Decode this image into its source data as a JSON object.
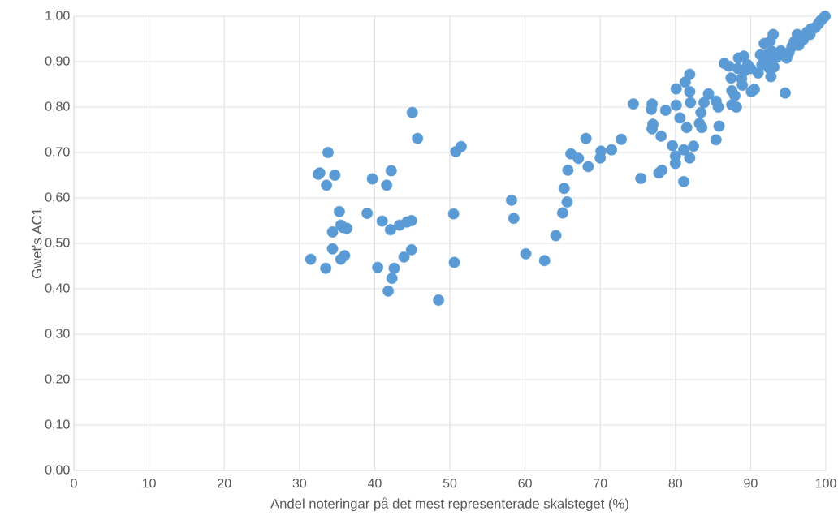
{
  "chart_data": {
    "type": "scatter",
    "xlabel": "Andel noteringar på det mest representerade skalsteget (%)",
    "ylabel": "Gwet's AC1",
    "x": [
      31.5,
      32.5,
      32.7,
      33.5,
      33.8,
      33.6,
      34.7,
      34.4,
      34.4,
      35.3,
      35.5,
      35.8,
      36.3,
      35.5,
      36.0,
      39.0,
      39.7,
      40.4,
      41.0,
      41.6,
      41.8,
      42.1,
      42.2,
      42.3,
      42.6,
      43.3,
      43.9,
      44.3,
      44.9,
      44.9,
      45.0,
      45.7,
      48.5,
      50.5,
      50.6,
      50.8,
      51.5,
      58.2,
      58.5,
      60.1,
      62.6,
      64.1,
      65.0,
      65.2,
      65.6,
      65.7,
      66.1,
      67.1,
      68.1,
      68.4,
      70.0,
      70.1,
      71.5,
      72.8,
      74.4,
      75.4,
      76.9,
      76.8,
      77.0,
      76.9,
      77.8,
      78.2,
      78.1,
      78.7,
      79.6,
      80.0,
      80.0,
      80.1,
      80.1,
      80.6,
      81.1,
      81.1,
      81.3,
      81.5,
      81.9,
      81.9,
      82.0,
      81.9,
      82.4,
      83.2,
      83.4,
      83.5,
      83.8,
      84.4,
      85.4,
      85.4,
      85.7,
      85.8,
      86.5,
      87.1,
      87.4,
      87.5,
      87.5,
      87.9,
      88.1,
      88.3,
      88.4,
      88.8,
      88.9,
      89.1,
      89.2,
      89.6,
      90.0,
      90.1,
      90.5,
      91.0,
      91.3,
      91.5,
      91.8,
      92.1,
      92.4,
      92.5,
      92.7,
      92.6,
      93.0,
      92.8,
      93.1,
      93.5,
      94.0,
      94.6,
      94.8,
      95.1,
      95.5,
      95.8,
      96.2,
      96.4,
      97.5,
      97.9,
      98.6,
      99.0,
      99.3,
      99.6,
      99.9,
      97.0,
      98.0
    ],
    "values": [
      0.465,
      0.652,
      0.655,
      0.445,
      0.7,
      0.628,
      0.65,
      0.525,
      0.488,
      0.57,
      0.54,
      0.535,
      0.533,
      0.465,
      0.473,
      0.566,
      0.642,
      0.447,
      0.549,
      0.628,
      0.395,
      0.53,
      0.66,
      0.423,
      0.445,
      0.54,
      0.47,
      0.547,
      0.55,
      0.486,
      0.788,
      0.731,
      0.375,
      0.565,
      0.458,
      0.702,
      0.713,
      0.595,
      0.555,
      0.477,
      0.462,
      0.517,
      0.567,
      0.621,
      0.591,
      0.661,
      0.697,
      0.687,
      0.731,
      0.669,
      0.688,
      0.703,
      0.706,
      0.729,
      0.807,
      0.643,
      0.807,
      0.795,
      0.762,
      0.752,
      0.655,
      0.661,
      0.736,
      0.793,
      0.715,
      0.676,
      0.692,
      0.804,
      0.84,
      0.776,
      0.636,
      0.706,
      0.855,
      0.755,
      0.872,
      0.834,
      0.81,
      0.688,
      0.714,
      0.764,
      0.788,
      0.755,
      0.81,
      0.829,
      0.728,
      0.813,
      0.8,
      0.758,
      0.896,
      0.89,
      0.864,
      0.836,
      0.805,
      0.825,
      0.8,
      0.885,
      0.908,
      0.862,
      0.848,
      0.912,
      0.88,
      0.893,
      0.885,
      0.834,
      0.839,
      0.875,
      0.915,
      0.893,
      0.94,
      0.915,
      0.9,
      0.885,
      0.867,
      0.945,
      0.96,
      0.923,
      0.888,
      0.91,
      0.924,
      0.831,
      0.908,
      0.92,
      0.933,
      0.944,
      0.96,
      0.936,
      0.965,
      0.96,
      0.975,
      0.983,
      0.99,
      0.995,
      1.0,
      0.948,
      0.972
    ],
    "color": "#5b9bd5",
    "marker": "circle",
    "grid": true,
    "xlim": [
      0,
      100
    ],
    "xticks": [
      0,
      10,
      20,
      30,
      40,
      50,
      60,
      70,
      80,
      90,
      100
    ],
    "ylim": [
      0,
      1
    ],
    "yticks": [
      {
        "value": 0,
        "label": "0,00"
      },
      {
        "value": 0.1,
        "label": "0,10"
      },
      {
        "value": 0.2,
        "label": "0,20"
      },
      {
        "value": 0.3,
        "label": "0,30"
      },
      {
        "value": 0.4,
        "label": "0,40"
      },
      {
        "value": 0.5,
        "label": "0,50"
      },
      {
        "value": 0.6,
        "label": "0,60"
      },
      {
        "value": 0.7,
        "label": "0,70"
      },
      {
        "value": 0.8,
        "label": "0,80"
      },
      {
        "value": 0.9,
        "label": "0,90"
      },
      {
        "value": 1.0,
        "label": "1,00"
      }
    ]
  }
}
